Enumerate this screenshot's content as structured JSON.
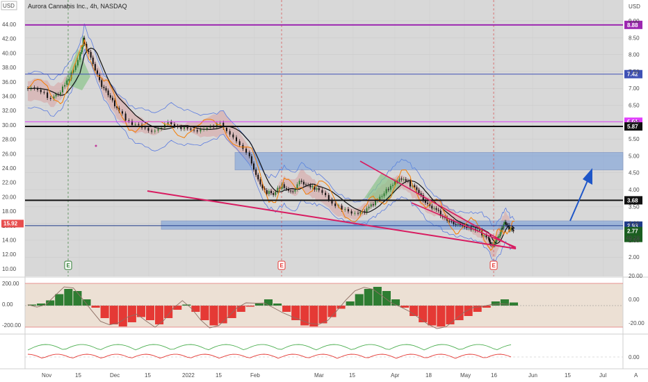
{
  "header": {
    "currency_left": "USD",
    "currency_right": "USD",
    "title": "Aurora Cannabis Inc., 4h, NASDAQ"
  },
  "colors": {
    "up": "#2e7d32",
    "down": "#111111",
    "purple_line": "#9c27b0",
    "blue_line": "#3f51b5",
    "magenta_line": "#e040fb",
    "black_line": "#111111",
    "zone_fill": "#5b8fdc",
    "wedge": "#d81b60",
    "arrow": "#1e56c8",
    "osc_pos": "#2e7d32",
    "osc_neg": "#e53935",
    "last_price": "#1b5e20",
    "left_price": "#e84e4e"
  },
  "chart_data": {
    "type": "line",
    "title": "Aurora Cannabis Inc., 4h, NASDAQ",
    "left_axis": {
      "ticks": [
        "44.00",
        "42.00",
        "40.00",
        "38.00",
        "36.00",
        "34.00",
        "32.00",
        "30.00",
        "28.00",
        "26.00",
        "24.00",
        "22.00",
        "20.00",
        "18.00",
        "16.00",
        "14.00",
        "12.00",
        "10.00"
      ],
      "current_label": "15.92"
    },
    "right_axis": {
      "ticks": [
        "9.00",
        "8.50",
        "8.00",
        "7.50",
        "7.00",
        "6.50",
        "6.00",
        "5.50",
        "5.00",
        "4.50",
        "4.00",
        "3.50",
        "3.00",
        "2.50",
        "2.00"
      ],
      "scale_label": "A"
    },
    "x_axis": {
      "ticks": [
        "Nov",
        "15",
        "Dec",
        "15",
        "2022",
        "15",
        "Feb",
        "Mar",
        "15",
        "Apr",
        "18",
        "May",
        "16",
        "Jun",
        "15",
        "Jul"
      ]
    },
    "levels": [
      {
        "value": 8.88,
        "label": "8.88",
        "color": "#9c27b0"
      },
      {
        "value": 7.42,
        "label": "7.42",
        "color": "#3f51b5"
      },
      {
        "value": 6.01,
        "label": "6.01",
        "color": "#e040fb"
      },
      {
        "value": 5.87,
        "label": "5.87",
        "color": "#111111"
      },
      {
        "value": 3.68,
        "label": "3.68",
        "color": "#111111"
      },
      {
        "value": 2.93,
        "label": "2.93",
        "color": "#1e3a8a"
      }
    ],
    "last_price": {
      "value": 2.77,
      "label": "2.77",
      "countdown": "49:28"
    },
    "zones": [
      {
        "from": 4.58,
        "to": 5.1
      },
      {
        "from": 2.82,
        "to": 3.07
      }
    ],
    "earnings_markers": [
      "E",
      "E",
      "E"
    ],
    "price_series": [
      {
        "t": 0,
        "close": 7.0
      },
      {
        "t": 3,
        "close": 6.95
      },
      {
        "t": 6,
        "close": 6.7
      },
      {
        "t": 8,
        "close": 6.9
      },
      {
        "t": 10,
        "close": 7.3
      },
      {
        "t": 12,
        "close": 7.8
      },
      {
        "t": 13,
        "close": 8.45
      },
      {
        "t": 15,
        "close": 7.9
      },
      {
        "t": 17,
        "close": 7.2
      },
      {
        "t": 19,
        "close": 6.8
      },
      {
        "t": 21,
        "close": 6.4
      },
      {
        "t": 24,
        "close": 6.0
      },
      {
        "t": 27,
        "close": 5.85
      },
      {
        "t": 30,
        "close": 5.7
      },
      {
        "t": 33,
        "close": 5.95
      },
      {
        "t": 36,
        "close": 5.85
      },
      {
        "t": 39,
        "close": 5.75
      },
      {
        "t": 42,
        "close": 5.8
      },
      {
        "t": 45,
        "close": 5.95
      },
      {
        "t": 48,
        "close": 5.6
      },
      {
        "t": 51,
        "close": 5.1
      },
      {
        "t": 53,
        "close": 4.4
      },
      {
        "t": 55,
        "close": 3.95
      },
      {
        "t": 57,
        "close": 3.85
      },
      {
        "t": 59,
        "close": 4.15
      },
      {
        "t": 61,
        "close": 3.9
      },
      {
        "t": 63,
        "close": 4.2
      },
      {
        "t": 65,
        "close": 4.15
      },
      {
        "t": 67,
        "close": 4.0
      },
      {
        "t": 70,
        "close": 3.7
      },
      {
        "t": 73,
        "close": 3.4
      },
      {
        "t": 76,
        "close": 3.25
      },
      {
        "t": 78,
        "close": 3.35
      },
      {
        "t": 80,
        "close": 3.55
      },
      {
        "t": 82,
        "close": 3.8
      },
      {
        "t": 84,
        "close": 4.1
      },
      {
        "t": 86,
        "close": 4.35
      },
      {
        "t": 88,
        "close": 4.2
      },
      {
        "t": 90,
        "close": 3.95
      },
      {
        "t": 92,
        "close": 3.6
      },
      {
        "t": 94,
        "close": 3.45
      },
      {
        "t": 96,
        "close": 3.2
      },
      {
        "t": 98,
        "close": 3.05
      },
      {
        "t": 100,
        "close": 2.95
      },
      {
        "t": 102,
        "close": 2.9
      },
      {
        "t": 104,
        "close": 2.8
      },
      {
        "t": 106,
        "close": 2.6
      },
      {
        "t": 107,
        "close": 2.35
      },
      {
        "t": 108,
        "close": 2.45
      },
      {
        "t": 109,
        "close": 2.75
      },
      {
        "t": 110,
        "close": 3.0
      },
      {
        "t": 111,
        "close": 2.85
      },
      {
        "t": 112,
        "close": 2.77
      }
    ],
    "oscillator_1": {
      "ticks_left": [
        "200.00",
        "0.00",
        "-200.00"
      ],
      "ticks_right": [
        "20.00",
        "0.00",
        "-20.00"
      ],
      "values": [
        10,
        20,
        50,
        110,
        160,
        140,
        60,
        -20,
        -120,
        -180,
        -200,
        -160,
        -110,
        -140,
        -180,
        -120,
        -40,
        10,
        -60,
        -140,
        -190,
        -170,
        -120,
        -60,
        -10,
        20,
        60,
        20,
        -60,
        -140,
        -190,
        -200,
        -170,
        -110,
        -30,
        40,
        110,
        160,
        180,
        140,
        60,
        -20,
        -100,
        -160,
        -190,
        -200,
        -180,
        -140,
        -100,
        -60,
        -20,
        40,
        60,
        30
      ]
    },
    "oscillator_2": {
      "ticks_right": [
        "0.00"
      ]
    }
  }
}
